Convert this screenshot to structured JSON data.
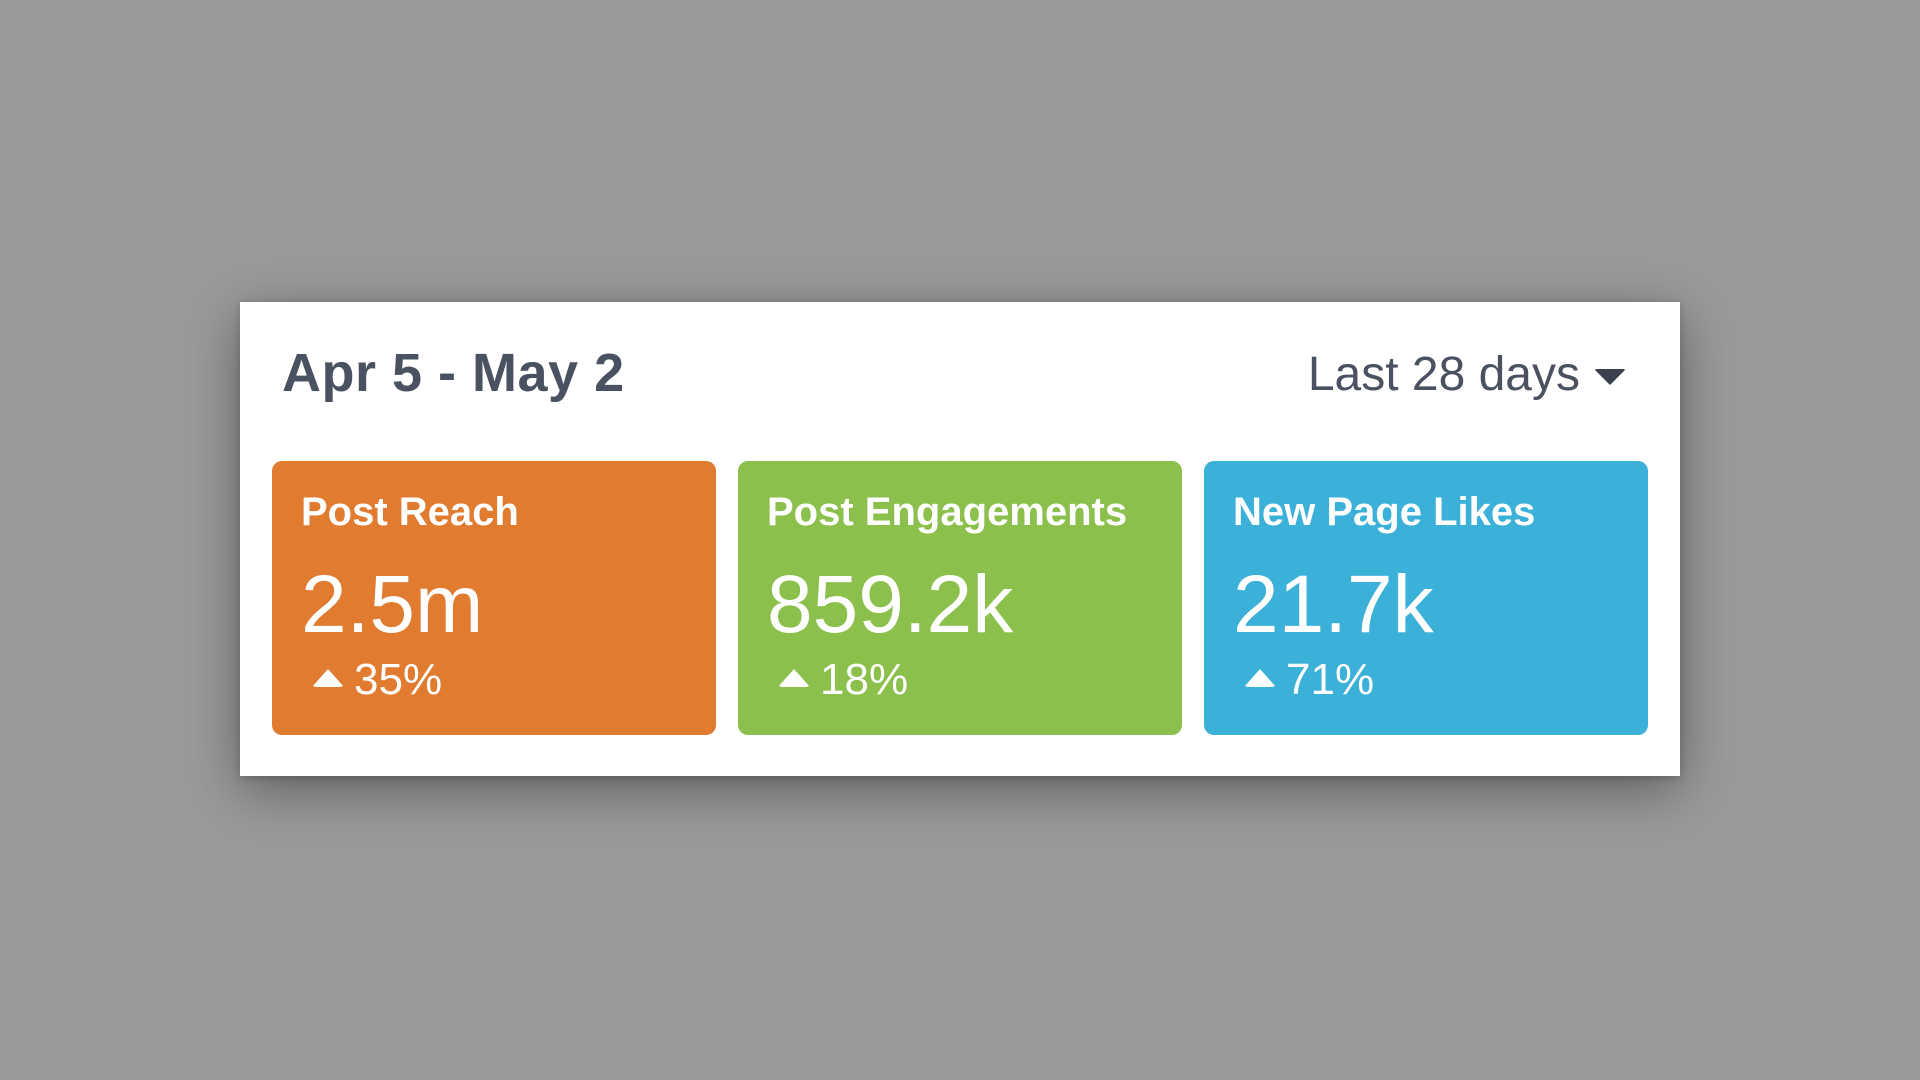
{
  "header": {
    "date_range": "Apr 5 - May 2",
    "period": {
      "selected": "Last 28 days",
      "icon": "caret-down-icon"
    }
  },
  "metrics": [
    {
      "title": "Post Reach",
      "value": "2.5m",
      "change": "35%",
      "trend": "up",
      "trend_icon": "triangle-up-icon",
      "color": "#e07b30"
    },
    {
      "title": "Post Engagements",
      "value": "859.2k",
      "change": "18%",
      "trend": "up",
      "trend_icon": "triangle-up-icon",
      "color": "#8bc04c"
    },
    {
      "title": "New Page Likes",
      "value": "21.7k",
      "change": "71%",
      "trend": "up",
      "trend_icon": "triangle-up-icon",
      "color": "#3bb0d8"
    }
  ],
  "colors": {
    "page_background": "#9a9a9a",
    "panel_background": "#ffffff",
    "header_text": "#4a5160"
  }
}
